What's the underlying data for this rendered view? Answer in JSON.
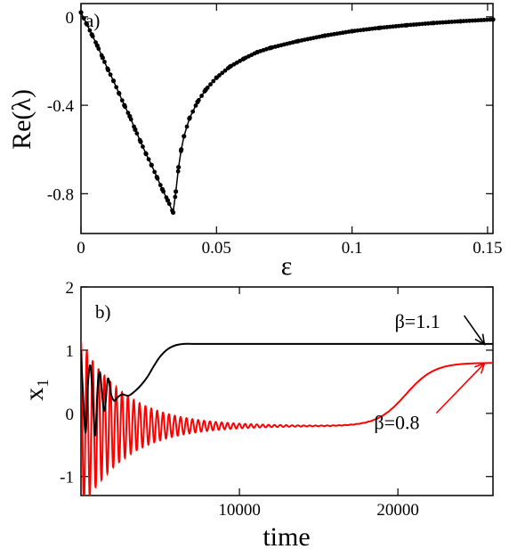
{
  "chart_data": [
    {
      "type": "line",
      "panel_label": "a)",
      "xlabel": "ε",
      "ylabel": "Re(λ)",
      "xlim": [
        0,
        0.152
      ],
      "ylim": [
        -0.98,
        0.06
      ],
      "xticks": [
        0,
        0.05,
        0.1,
        0.15
      ],
      "xtick_labels": [
        "0",
        "0.05",
        "0.1",
        "0.15"
      ],
      "yticks": [
        0,
        -0.4,
        -0.8
      ],
      "ytick_labels": [
        "0",
        "-0.4",
        "-0.8"
      ],
      "grid": false,
      "markers": true,
      "line_color": "#000000",
      "series": [
        {
          "x": [
            0.0,
            0.002,
            0.004,
            0.006,
            0.008,
            0.01,
            0.012,
            0.014,
            0.016,
            0.018,
            0.02,
            0.022,
            0.024,
            0.026,
            0.028,
            0.03,
            0.032,
            0.034,
            0.035,
            0.036,
            0.037,
            0.038,
            0.04,
            0.043,
            0.046,
            0.05,
            0.055,
            0.06,
            0.065,
            0.07,
            0.08,
            0.09,
            0.1,
            0.11,
            0.12,
            0.13,
            0.14,
            0.152
          ],
          "y": [
            0.02,
            -0.03,
            -0.08,
            -0.13,
            -0.185,
            -0.24,
            -0.29,
            -0.345,
            -0.4,
            -0.45,
            -0.51,
            -0.565,
            -0.62,
            -0.67,
            -0.725,
            -0.78,
            -0.83,
            -0.885,
            -0.79,
            -0.68,
            -0.6,
            -0.54,
            -0.46,
            -0.385,
            -0.33,
            -0.275,
            -0.225,
            -0.19,
            -0.16,
            -0.14,
            -0.11,
            -0.085,
            -0.065,
            -0.05,
            -0.038,
            -0.028,
            -0.02,
            -0.012
          ]
        }
      ]
    },
    {
      "type": "line",
      "panel_label": "b)",
      "xlabel": "time",
      "ylabel": "x₁",
      "xlim": [
        0,
        26000
      ],
      "ylim": [
        -1.3,
        2.0
      ],
      "xticks": [
        10000,
        20000
      ],
      "xtick_labels": [
        "10000",
        "20000"
      ],
      "yticks": [
        -1,
        0,
        1,
        2
      ],
      "ytick_labels": [
        "-1",
        "0",
        "1",
        "2"
      ],
      "grid": false,
      "annotations": [
        {
          "text": "β=1.1",
          "color": "#000000",
          "x": 19800,
          "y": 1.35,
          "arrow_to": [
            25800,
            1.12
          ]
        },
        {
          "text": "β=0.8",
          "color": "#ff0000",
          "x": 18500,
          "y": -0.25,
          "arrow_to": [
            25800,
            0.82
          ]
        }
      ],
      "series": [
        {
          "beta": 1.1,
          "color": "#000000",
          "equilibrium": 1.1,
          "x": [
            0,
            150,
            300,
            450,
            600,
            750,
            900,
            1050,
            1200,
            1350,
            1500,
            1700,
            1900,
            2100,
            2300,
            2600,
            3000,
            3400,
            3800,
            4200,
            4600,
            5000,
            5500,
            6000,
            6500,
            7000,
            8000,
            10000,
            14000,
            20000,
            26000
          ],
          "y": [
            1.0,
            0.2,
            -0.3,
            0.5,
            0.75,
            0.2,
            -0.35,
            0.4,
            0.65,
            0.25,
            0.05,
            0.55,
            0.3,
            0.2,
            0.25,
            0.3,
            0.28,
            0.35,
            0.45,
            0.58,
            0.75,
            0.9,
            1.02,
            1.08,
            1.1,
            1.1,
            1.1,
            1.1,
            1.1,
            1.1,
            1.1
          ]
        },
        {
          "beta": 0.8,
          "color": "#ff0000",
          "equilibrium": 0.8,
          "baseline": -0.2,
          "oscillation_period": 370,
          "oscillation_decay_time": 2800,
          "rise_start": 15500,
          "rise_midpoint": 20500,
          "x": [
            0,
            1000,
            2000,
            4000,
            6000,
            8000,
            10000,
            12000,
            14000,
            16000,
            18000,
            19000,
            20000,
            21000,
            22000,
            23000,
            24000,
            26000
          ],
          "y": [
            -1.3,
            0.7,
            0.45,
            0.25,
            0.12,
            0.05,
            -0.02,
            -0.12,
            -0.2,
            -0.18,
            -0.05,
            0.08,
            0.25,
            0.45,
            0.62,
            0.72,
            0.78,
            0.8
          ]
        }
      ]
    }
  ]
}
